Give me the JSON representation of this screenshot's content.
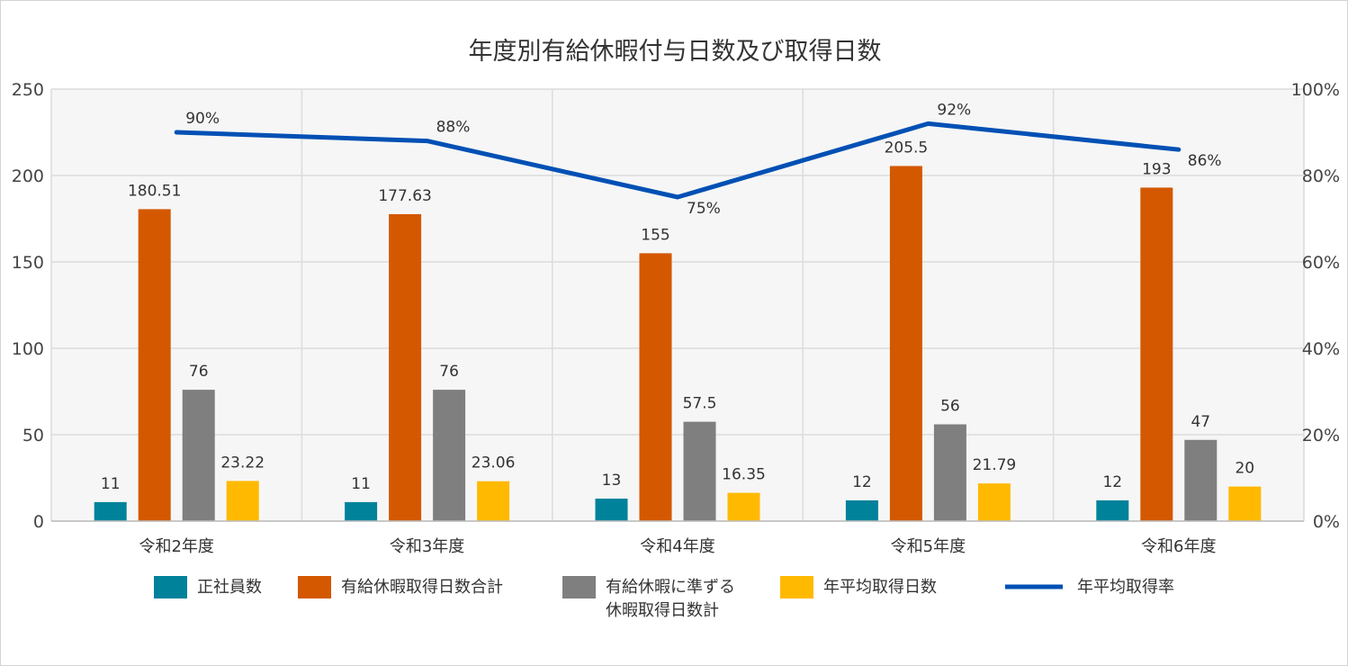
{
  "chart_data": {
    "type": "bar",
    "title": "年度別有給休暇付与日数及び取得日数",
    "categories": [
      "令和2年度",
      "令和3年度",
      "令和4年度",
      "令和5年度",
      "令和6年度"
    ],
    "ylim": [
      0,
      250
    ],
    "yticks": [
      "0",
      "50",
      "100",
      "150",
      "200",
      "250"
    ],
    "y2lim": [
      0,
      100
    ],
    "y2ticks": [
      "0%",
      "20%",
      "40%",
      "60%",
      "80%",
      "100%"
    ],
    "grid": true,
    "legend_position": "bottom",
    "series": [
      {
        "name": "正社員数",
        "type": "bar",
        "axis": "left",
        "color": "#00829b",
        "values": [
          11,
          11,
          13,
          12,
          12
        ],
        "labels": [
          "11",
          "11",
          "13",
          "12",
          "12"
        ]
      },
      {
        "name": "有給休暇取得日数合計",
        "type": "bar",
        "axis": "left",
        "color": "#d45800",
        "values": [
          180.51,
          177.63,
          155,
          205.5,
          193
        ],
        "labels": [
          "180.51",
          "177.63",
          "155",
          "205.5",
          "193"
        ]
      },
      {
        "name": "有給休暇に準ずる休暇取得日数計",
        "legend_lines": [
          "有給休暇に準ずる",
          "休暇取得日数計"
        ],
        "type": "bar",
        "axis": "left",
        "color": "#7f7f7f",
        "values": [
          76,
          76,
          57.5,
          56,
          47
        ],
        "labels": [
          "76",
          "76",
          "57.5",
          "56",
          "47"
        ]
      },
      {
        "name": "年平均取得日数",
        "type": "bar",
        "axis": "left",
        "color": "#ffb900",
        "values": [
          23.22,
          23.06,
          16.35,
          21.79,
          20
        ],
        "labels": [
          "23.22",
          "23.06",
          "16.35",
          "21.79",
          "20"
        ]
      },
      {
        "name": "年平均取得率",
        "type": "line",
        "axis": "right",
        "color": "#0050b4",
        "values": [
          90,
          88,
          75,
          92,
          86
        ],
        "labels": [
          "90%",
          "88%",
          "75%",
          "92%",
          "86%"
        ]
      }
    ]
  }
}
